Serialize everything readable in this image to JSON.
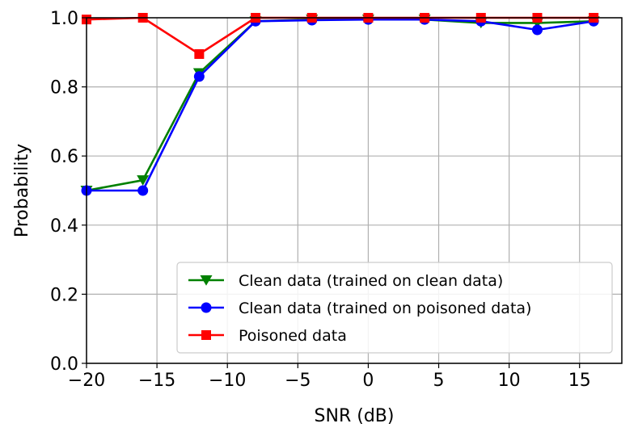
{
  "chart_data": {
    "type": "line",
    "xlabel": "SNR (dB)",
    "ylabel": "Probability",
    "xlim": [
      -20,
      18
    ],
    "ylim": [
      0,
      1.0
    ],
    "xticks": [
      -20,
      -15,
      -10,
      -5,
      0,
      5,
      10,
      15
    ],
    "yticks": [
      0.0,
      0.2,
      0.4,
      0.6,
      0.8,
      1.0
    ],
    "xtick_labels": [
      "−20",
      "−15",
      "−10",
      "−5",
      "0",
      "5",
      "10",
      "15"
    ],
    "ytick_labels": [
      "0.0",
      "0.2",
      "0.4",
      "0.6",
      "0.8",
      "1.0"
    ],
    "grid": true,
    "legend_position": "lower-right",
    "x": [
      -20,
      -16,
      -12,
      -8,
      -4,
      0,
      4,
      8,
      12,
      16
    ],
    "series": [
      {
        "name": "Clean data (trained on clean data)",
        "color": "#008000",
        "marker": "triangle-down",
        "values": [
          0.5,
          0.53,
          0.84,
          0.99,
          0.995,
          0.995,
          0.995,
          0.985,
          0.985,
          0.99
        ]
      },
      {
        "name": "Clean data (trained on poisoned data)",
        "color": "#0000ff",
        "marker": "circle",
        "values": [
          0.5,
          0.5,
          0.83,
          0.99,
          0.993,
          0.995,
          0.995,
          0.99,
          0.965,
          0.99
        ]
      },
      {
        "name": "Poisoned data",
        "color": "#ff0000",
        "marker": "square",
        "values": [
          0.995,
          1.0,
          0.895,
          1.0,
          1.0,
          1.0,
          1.0,
          1.0,
          1.0,
          1.0
        ]
      }
    ]
  }
}
